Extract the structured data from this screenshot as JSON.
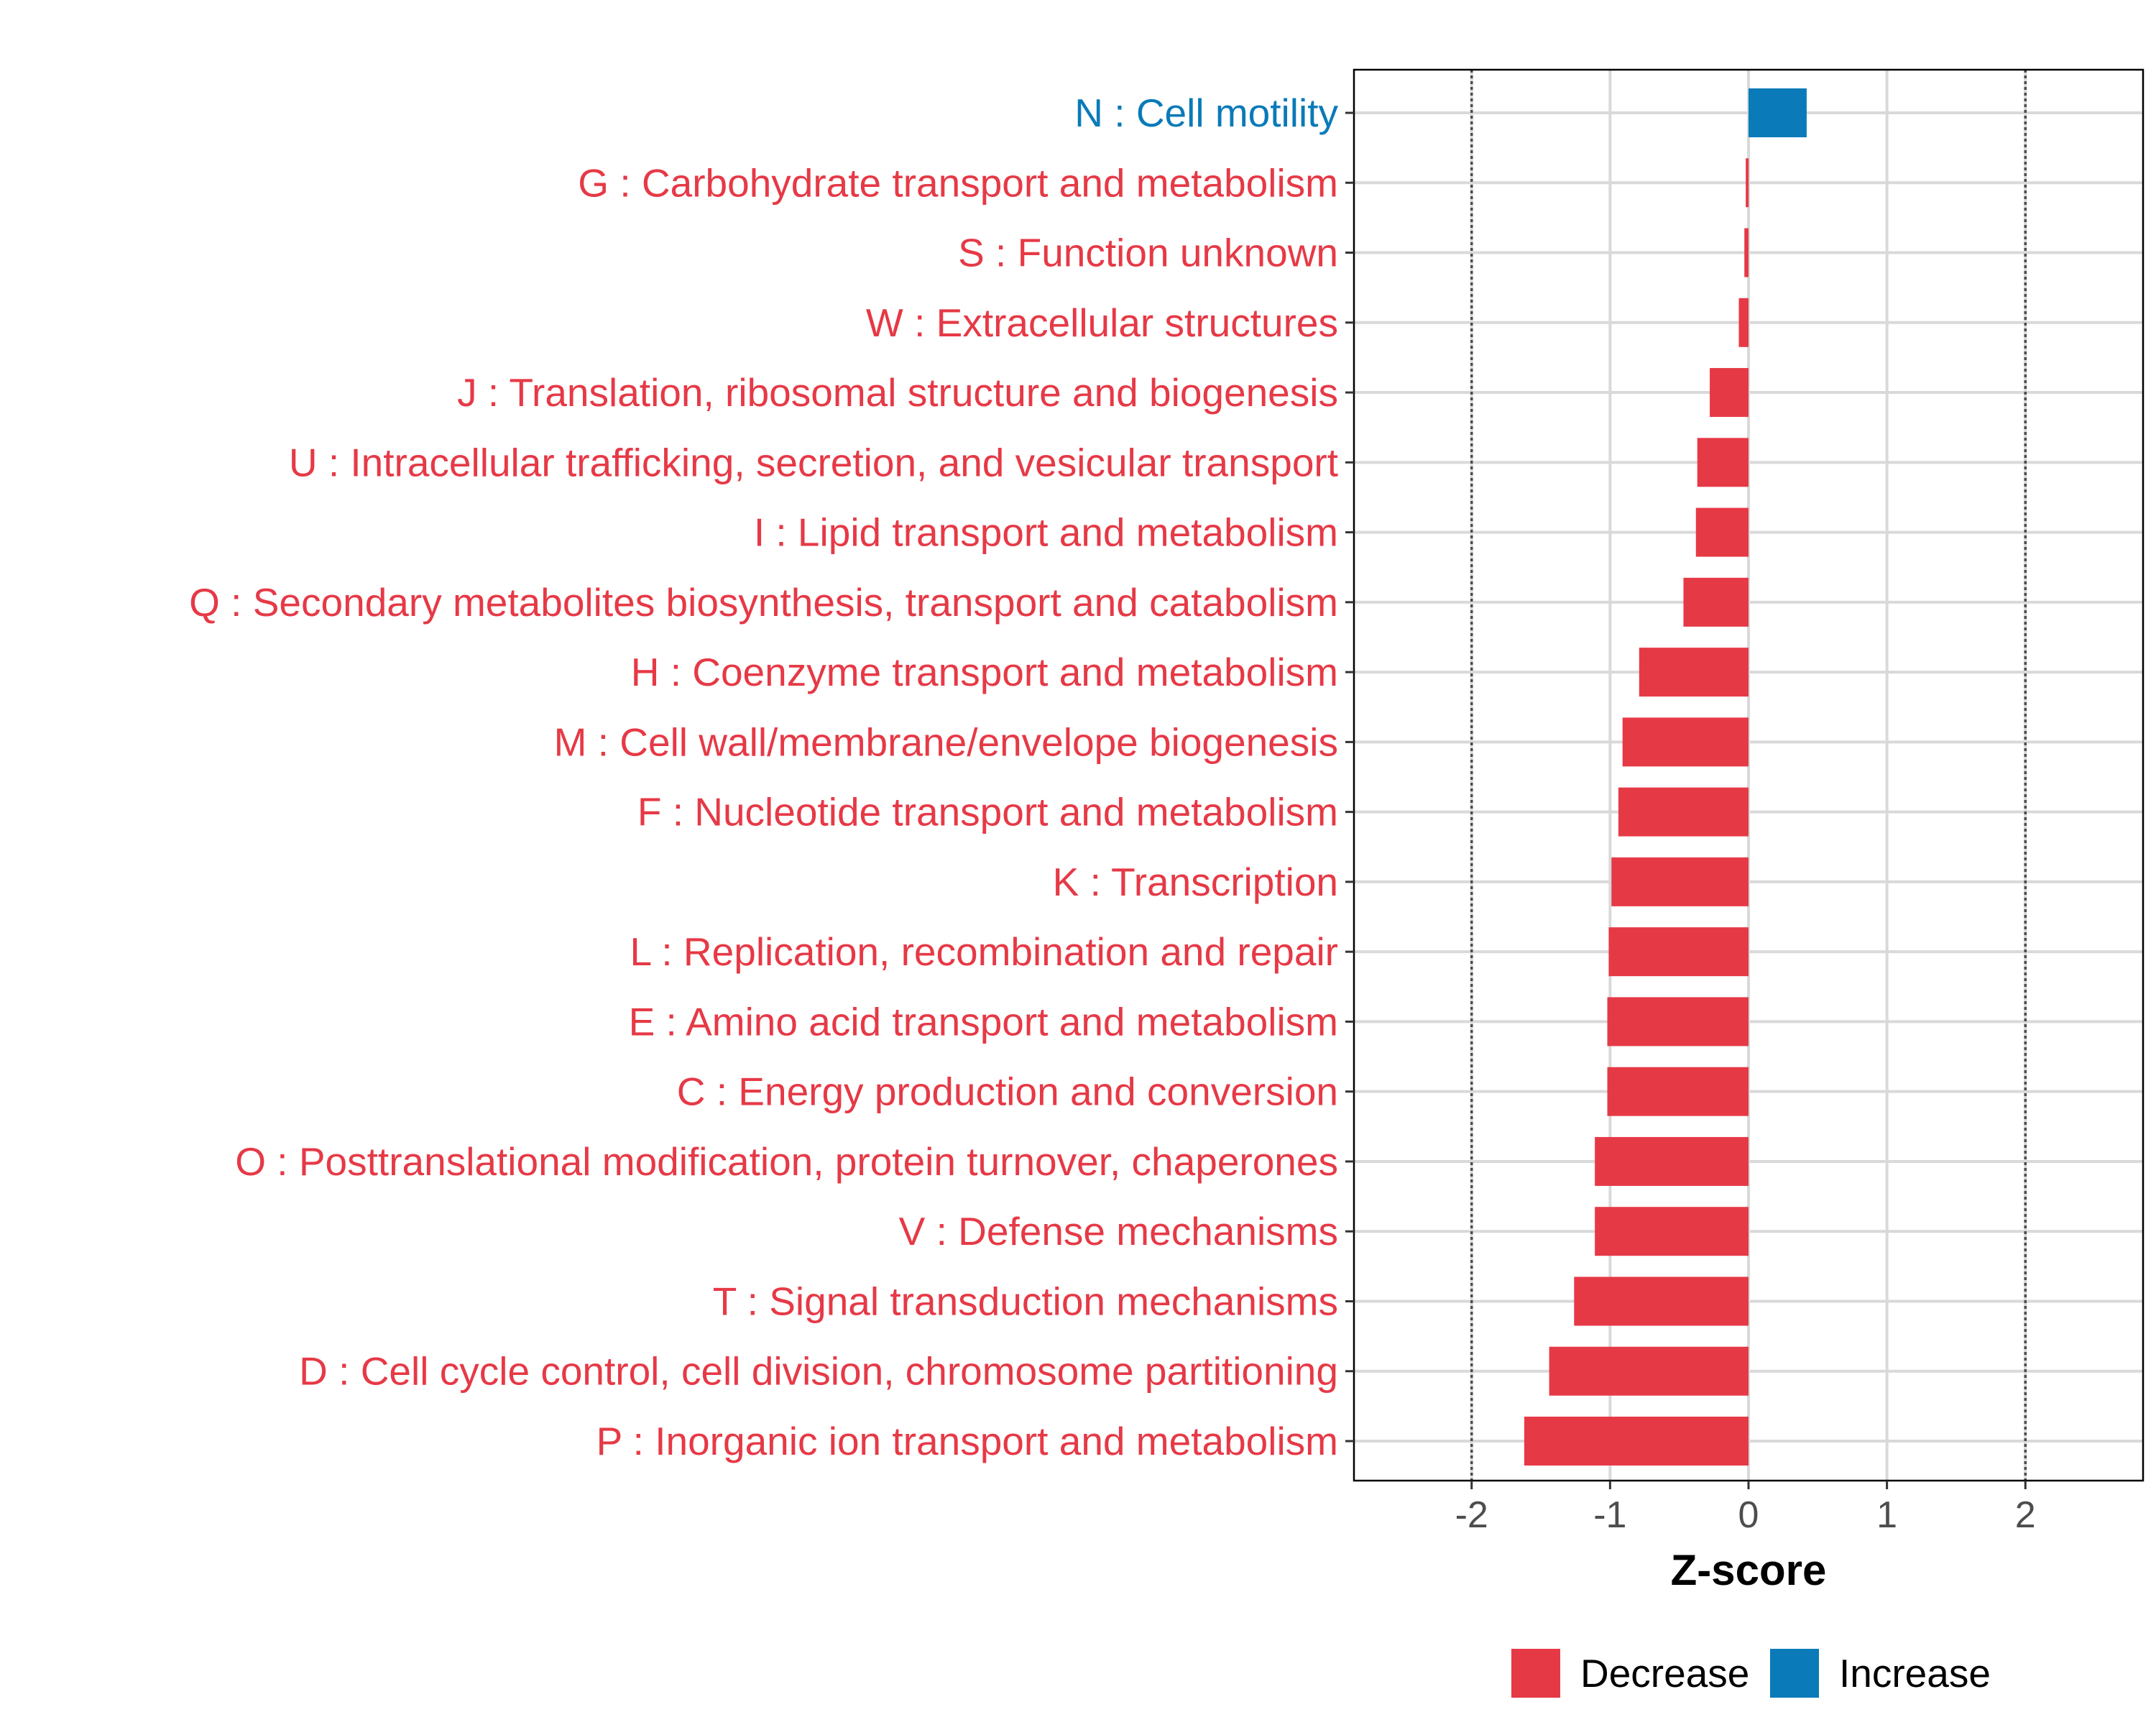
{
  "chart_data": {
    "type": "bar",
    "orientation": "horizontal",
    "xlabel": "Z-score",
    "ylabel": "",
    "xlim": [
      -2.85,
      2.85
    ],
    "xticks": [
      -2,
      -1,
      0,
      1,
      2
    ],
    "xtick_labels": [
      "-2",
      "-1",
      "0",
      "1",
      "2"
    ],
    "reference_lines": [
      -2,
      2
    ],
    "grid": true,
    "legend_position": "bottom",
    "colors": {
      "Decrease": "#e63946",
      "Increase": "#0a7ab8"
    },
    "legend": [
      {
        "label": "Decrease",
        "color": "#e63946"
      },
      {
        "label": "Increase",
        "color": "#0a7ab8"
      }
    ],
    "categories": [
      "N : Cell motility",
      "G : Carbohydrate transport and metabolism",
      "S : Function unknown",
      "W : Extracellular structures",
      "J : Translation, ribosomal structure and biogenesis",
      "U : Intracellular trafficking, secretion, and vesicular transport",
      "I : Lipid transport and metabolism",
      "Q : Secondary metabolites biosynthesis, transport and catabolism",
      "H : Coenzyme transport and metabolism",
      "M : Cell wall/membrane/envelope biogenesis",
      "F : Nucleotide transport and metabolism",
      "K : Transcription",
      "L : Replication, recombination and repair",
      "E : Amino acid transport and metabolism",
      "C : Energy production and conversion",
      "O : Posttranslational modification, protein turnover, chaperones",
      "V : Defense mechanisms",
      "T : Signal transduction mechanisms",
      "D : Cell cycle control, cell division, chromosome partitioning",
      "P : Inorganic ion transport and metabolism"
    ],
    "values": [
      0.42,
      -0.02,
      -0.03,
      -0.07,
      -0.28,
      -0.37,
      -0.38,
      -0.47,
      -0.79,
      -0.91,
      -0.94,
      -0.99,
      -1.01,
      -1.02,
      -1.02,
      -1.11,
      -1.11,
      -1.26,
      -1.44,
      -1.62
    ],
    "directions": [
      "Increase",
      "Decrease",
      "Decrease",
      "Decrease",
      "Decrease",
      "Decrease",
      "Decrease",
      "Decrease",
      "Decrease",
      "Decrease",
      "Decrease",
      "Decrease",
      "Decrease",
      "Decrease",
      "Decrease",
      "Decrease",
      "Decrease",
      "Decrease",
      "Decrease",
      "Decrease"
    ]
  }
}
